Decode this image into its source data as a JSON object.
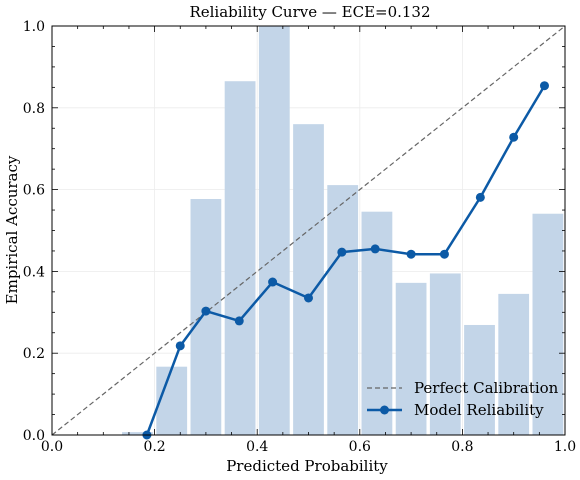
{
  "chart_data": {
    "type": "bar+line",
    "title": "Reliability Curve — ECE=0.132",
    "xlabel": "Predicted Probability",
    "ylabel": "Empirical Accuracy",
    "xlim": [
      0,
      1
    ],
    "ylim": [
      0,
      1
    ],
    "xticks": [
      "0.0",
      "0.2",
      "0.4",
      "0.6",
      "0.8",
      "1.0"
    ],
    "yticks": [
      "0.0",
      "0.2",
      "0.4",
      "0.6",
      "0.8",
      "1.0"
    ],
    "grid": true,
    "legend_position": "lower-right",
    "histogram": {
      "bin_edges": [
        0.1333,
        0.2,
        0.2667,
        0.3333,
        0.4,
        0.4667,
        0.5333,
        0.6,
        0.6667,
        0.7333,
        0.8,
        0.8667,
        0.9333,
        1.0
      ],
      "relative_counts": [
        0.007,
        0.167,
        0.577,
        0.865,
        1.0,
        0.76,
        0.611,
        0.546,
        0.372,
        0.395,
        0.269,
        0.345,
        0.541
      ],
      "color": "#c3d5e8"
    },
    "series": [
      {
        "name": "Perfect Calibration",
        "style": "dashed",
        "color": "#666666",
        "x": [
          0,
          1
        ],
        "y": [
          0,
          1
        ]
      },
      {
        "name": "Model Reliability",
        "style": "solid-markers",
        "color": "#0c5aa6",
        "x": [
          0.185,
          0.25,
          0.3,
          0.365,
          0.43,
          0.5,
          0.565,
          0.63,
          0.7,
          0.765,
          0.835,
          0.9,
          0.96
        ],
        "y": [
          0.0,
          0.218,
          0.303,
          0.279,
          0.374,
          0.335,
          0.447,
          0.455,
          0.442,
          0.442,
          0.581,
          0.728,
          0.854
        ]
      }
    ]
  }
}
